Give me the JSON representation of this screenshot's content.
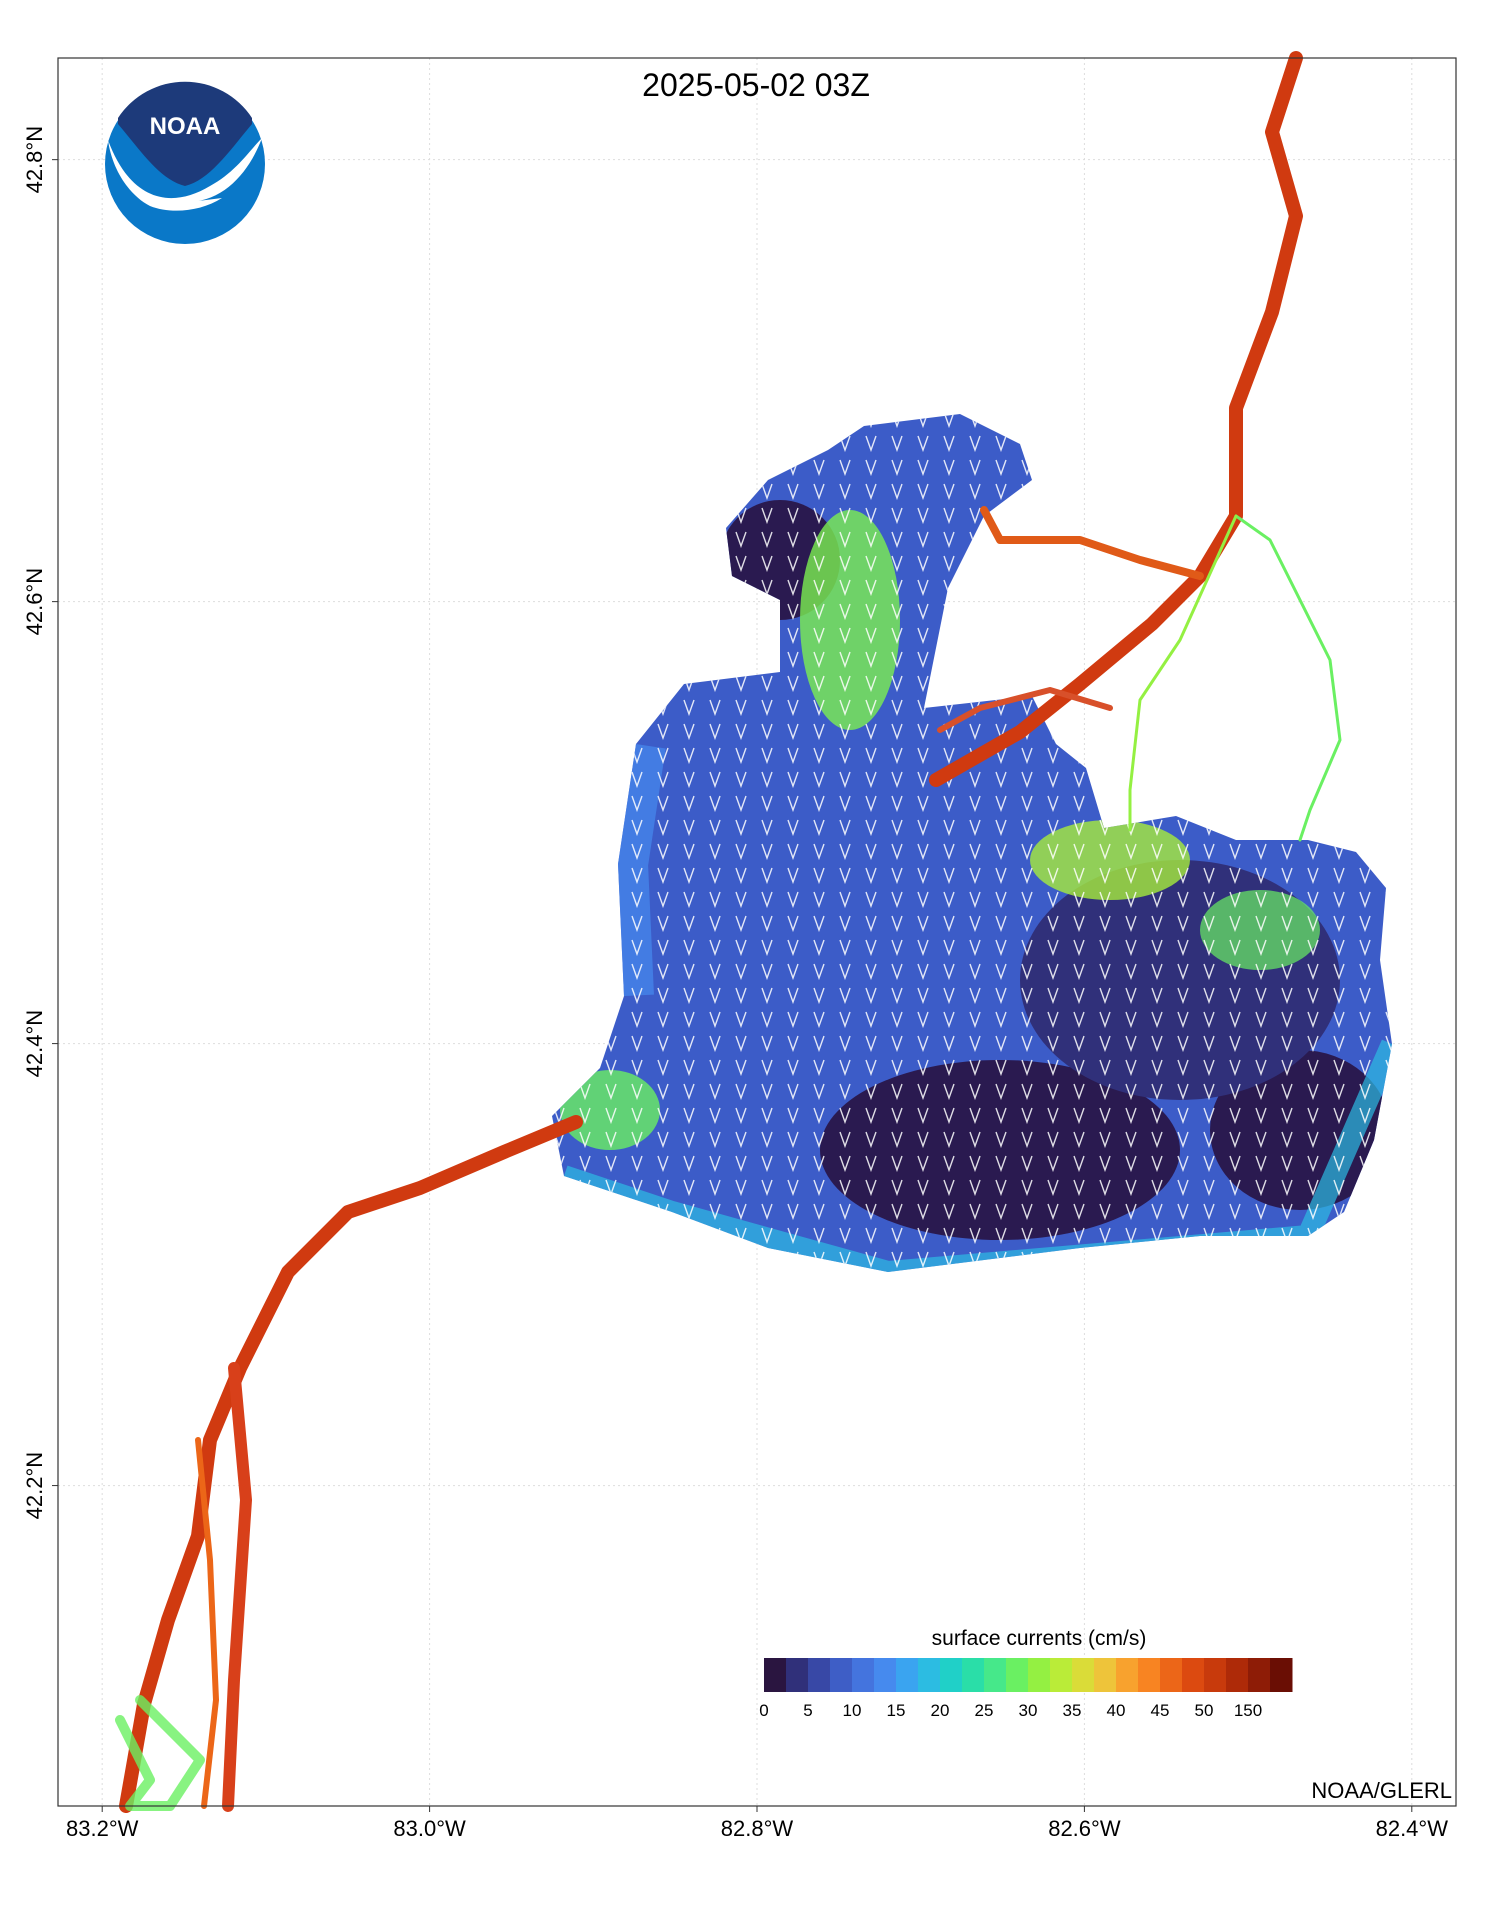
{
  "map": {
    "title": "2025-05-02 03Z",
    "logo": "NOAA",
    "credit": "NOAA/GLERL",
    "xlim": [
      -83.227,
      -82.373
    ],
    "ylim": [
      42.055,
      42.846
    ],
    "xticks": [
      {
        "value": -83.2,
        "label": "83.2°W"
      },
      {
        "value": -83.0,
        "label": "83.0°W"
      },
      {
        "value": -82.8,
        "label": "82.8°W"
      },
      {
        "value": -82.6,
        "label": "82.6°W"
      },
      {
        "value": -82.4,
        "label": "82.4°W"
      }
    ],
    "yticks": [
      {
        "value": 42.2,
        "label": "42.2°N"
      },
      {
        "value": 42.4,
        "label": "42.4°N"
      },
      {
        "value": 42.6,
        "label": "42.6°N"
      },
      {
        "value": 42.8,
        "label": "42.8°N"
      }
    ],
    "colorbar": {
      "label": "surface currents (cm/s)",
      "ticks": [
        "0",
        "5",
        "10",
        "15",
        "20",
        "25",
        "30",
        "35",
        "40",
        "45",
        "50",
        "150"
      ],
      "colors": [
        "#2a1540",
        "#30307a",
        "#3848a6",
        "#3e5ec6",
        "#4474de",
        "#468aee",
        "#3aa4f0",
        "#2cbce2",
        "#20d0c8",
        "#2adea8",
        "#46e88a",
        "#6af062",
        "#94f042",
        "#baec38",
        "#dadc38",
        "#eec43a",
        "#f8a22e",
        "#f88422",
        "#ec6618",
        "#dc4a10",
        "#c83a0c",
        "#ae2a08",
        "#8e1c06",
        "#6a0e04"
      ]
    }
  }
}
